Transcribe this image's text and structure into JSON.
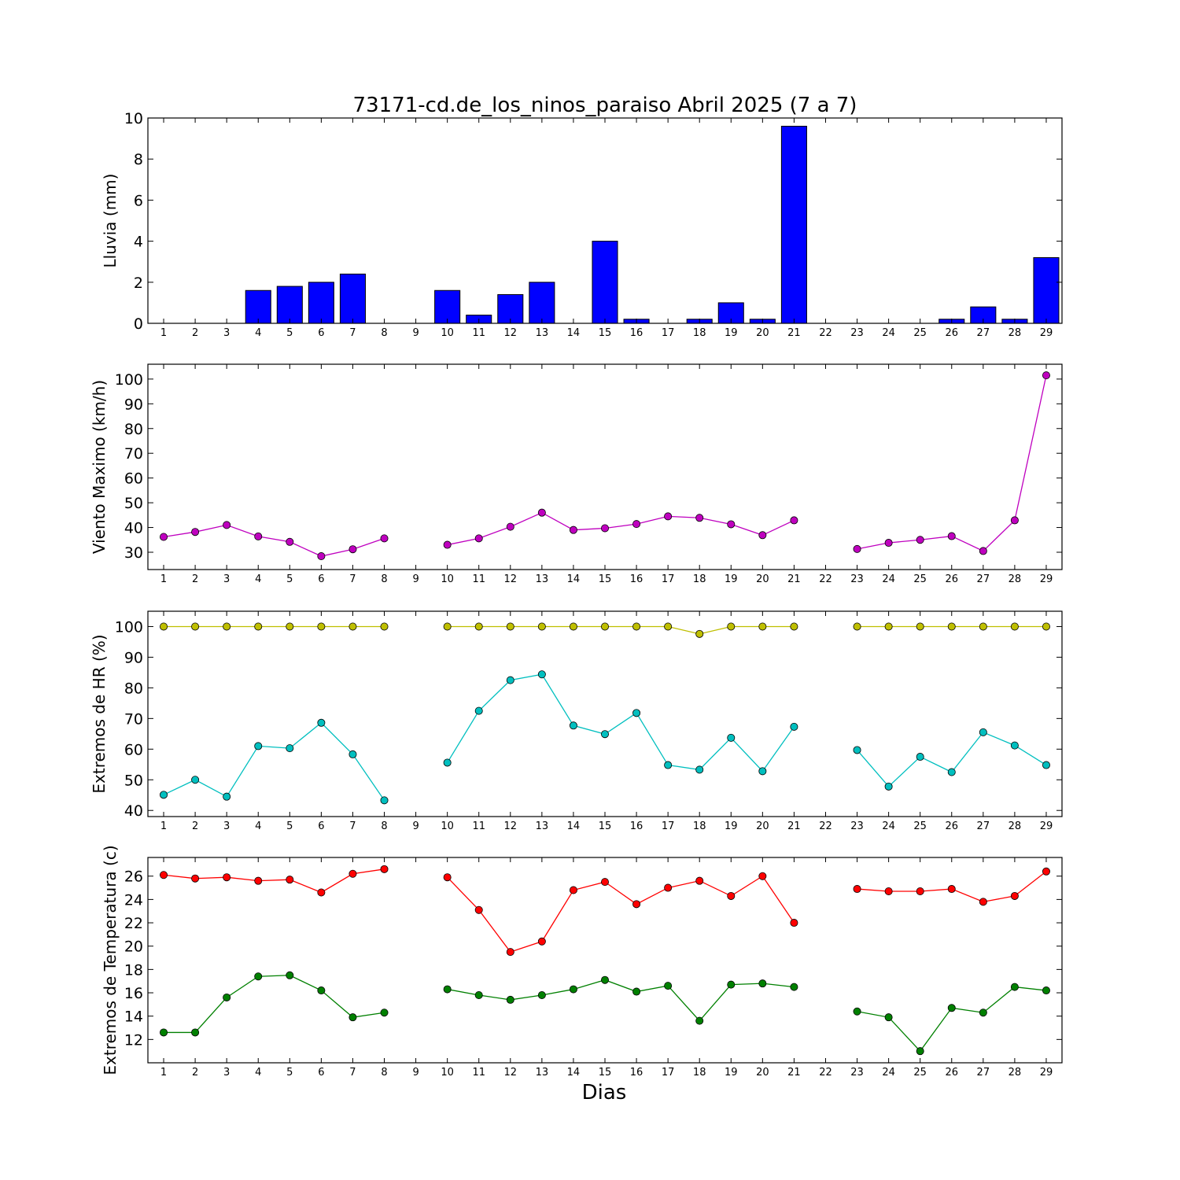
{
  "title": "73171-cd.de_los_ninos_paraiso Abril 2025  (7 a 7)",
  "xlabel": "Dias",
  "days": [
    1,
    2,
    3,
    4,
    5,
    6,
    7,
    8,
    9,
    10,
    11,
    12,
    13,
    14,
    15,
    16,
    17,
    18,
    19,
    20,
    21,
    22,
    23,
    24,
    25,
    26,
    27,
    28,
    29
  ],
  "chart_data": [
    {
      "type": "bar",
      "ylabel": "Lluvia (mm)",
      "ylim": [
        0,
        10
      ],
      "yticks": [
        0,
        2,
        4,
        6,
        8,
        10
      ],
      "series": [
        {
          "color": "#0000ff",
          "values": [
            0,
            0,
            0,
            1.6,
            1.8,
            2.0,
            2.4,
            null,
            null,
            1.6,
            0.4,
            1.4,
            2.0,
            null,
            4.0,
            0.2,
            0,
            0.2,
            1.0,
            0.2,
            9.6,
            null,
            0,
            0,
            0,
            0.2,
            0.8,
            0.2,
            3.2
          ]
        }
      ]
    },
    {
      "type": "line",
      "ylabel": "Viento Maximo (km/h)",
      "ylim": [
        23,
        106
      ],
      "yticks": [
        30,
        40,
        50,
        60,
        70,
        80,
        90,
        100
      ],
      "series": [
        {
          "color": "#bf00bf",
          "values": [
            36.2,
            38.2,
            41.0,
            36.4,
            34.2,
            28.4,
            31.2,
            35.6,
            null,
            33.0,
            35.6,
            40.3,
            46.0,
            39.0,
            39.7,
            41.4,
            44.5,
            43.9,
            41.3,
            36.9,
            42.9,
            null,
            31.3,
            33.8,
            35.0,
            36.5,
            30.5,
            42.9,
            101.5
          ]
        }
      ]
    },
    {
      "type": "line",
      "ylabel": "Extremos de HR (%)",
      "ylim": [
        38,
        105
      ],
      "yticks": [
        40,
        50,
        60,
        70,
        80,
        90,
        100
      ],
      "series": [
        {
          "color": "#bfbf00",
          "values": [
            100,
            100,
            100,
            100,
            100,
            100,
            100,
            100,
            null,
            100,
            100,
            100,
            100,
            100,
            100,
            100,
            100,
            97.6,
            100,
            100,
            100,
            null,
            100,
            100,
            100,
            100,
            100,
            100,
            100
          ]
        },
        {
          "color": "#00bfbf",
          "values": [
            45.1,
            50.0,
            44.5,
            61.0,
            60.3,
            68.6,
            58.3,
            43.3,
            null,
            55.6,
            72.5,
            82.5,
            84.4,
            67.7,
            64.9,
            71.8,
            54.8,
            53.3,
            63.7,
            52.8,
            67.3,
            null,
            59.7,
            47.8,
            57.5,
            52.5,
            65.5,
            61.2,
            54.8
          ]
        }
      ]
    },
    {
      "type": "line",
      "ylabel": "Extremos de Temperatura (c)",
      "ylim": [
        10,
        27.6
      ],
      "yticks": [
        12,
        14,
        16,
        18,
        20,
        22,
        24,
        26
      ],
      "series": [
        {
          "color": "#ff0000",
          "values": [
            26.1,
            25.8,
            25.9,
            25.6,
            25.7,
            24.6,
            26.2,
            26.6,
            null,
            25.9,
            23.1,
            19.5,
            20.4,
            24.8,
            25.5,
            23.6,
            25.0,
            25.6,
            24.3,
            26.0,
            22.0,
            null,
            24.9,
            24.7,
            24.7,
            24.9,
            23.8,
            24.3,
            26.4
          ]
        },
        {
          "color": "#008000",
          "values": [
            12.6,
            12.6,
            15.6,
            17.4,
            17.5,
            16.2,
            13.9,
            14.3,
            null,
            16.3,
            15.8,
            15.4,
            15.8,
            16.3,
            17.1,
            16.1,
            16.6,
            13.6,
            16.7,
            16.8,
            16.5,
            null,
            14.4,
            13.9,
            11.0,
            14.7,
            14.3,
            16.5,
            16.2
          ]
        }
      ]
    }
  ]
}
